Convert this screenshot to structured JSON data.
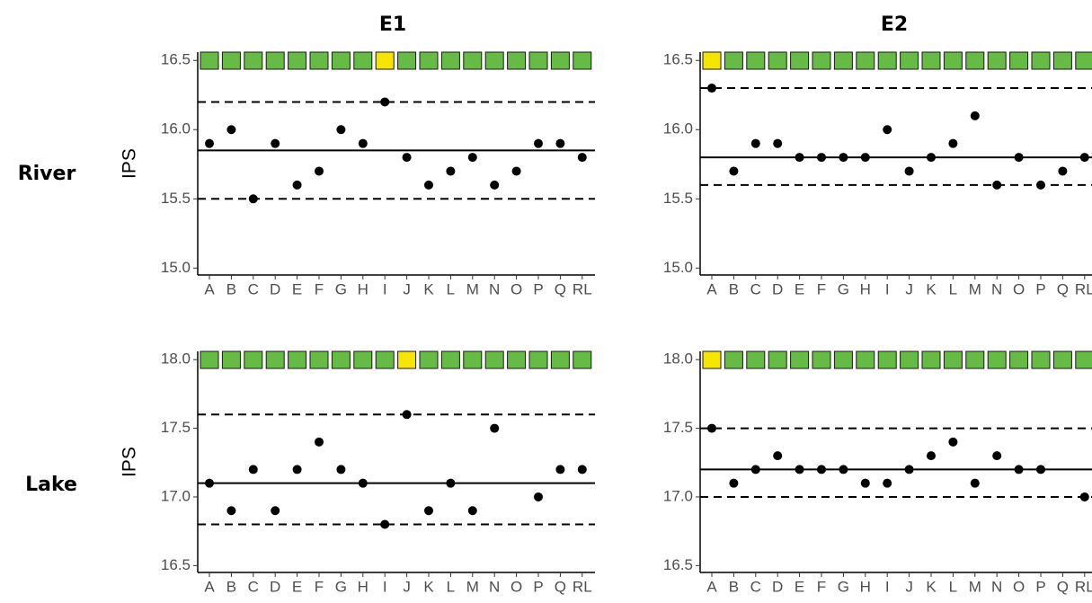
{
  "facets": {
    "columns": [
      "E1",
      "E2"
    ],
    "rows": [
      "River",
      "Lake"
    ]
  },
  "chart_data": [
    {
      "type": "scatter",
      "y_label": "IPS",
      "categories": [
        "A",
        "B",
        "C",
        "D",
        "E",
        "F",
        "G",
        "H",
        "I",
        "J",
        "K",
        "L",
        "M",
        "N",
        "O",
        "P",
        "Q",
        "RL"
      ],
      "values": [
        15.9,
        16.0,
        15.5,
        15.9,
        15.6,
        15.7,
        16.0,
        15.9,
        16.2,
        15.8,
        15.6,
        15.7,
        15.8,
        15.6,
        15.7,
        15.9,
        15.9,
        15.8
      ],
      "center": 15.85,
      "limits": [
        15.5,
        16.2
      ],
      "flags": [
        "#66bb44",
        "#66bb44",
        "#66bb44",
        "#66bb44",
        "#66bb44",
        "#66bb44",
        "#66bb44",
        "#66bb44",
        "#f6e500",
        "#66bb44",
        "#66bb44",
        "#66bb44",
        "#66bb44",
        "#66bb44",
        "#66bb44",
        "#66bb44",
        "#66bb44",
        "#66bb44"
      ],
      "color": "#000000",
      "ylim": [
        14.95,
        16.56
      ],
      "yticks": [
        {
          "value": 15,
          "label": "15.0"
        },
        {
          "value": 15.5,
          "label": "15.5"
        },
        {
          "value": 16,
          "label": "16.0"
        },
        {
          "value": 16.5,
          "label": "16.5"
        }
      ]
    },
    {
      "type": "scatter",
      "categories": [
        "A",
        "B",
        "C",
        "D",
        "E",
        "F",
        "G",
        "H",
        "I",
        "J",
        "K",
        "L",
        "M",
        "N",
        "O",
        "P",
        "Q",
        "RL"
      ],
      "values": [
        16.3,
        15.7,
        15.9,
        15.9,
        15.8,
        15.8,
        15.8,
        15.8,
        16.0,
        15.7,
        15.8,
        15.9,
        16.1,
        15.6,
        15.8,
        15.6,
        15.7,
        15.8
      ],
      "center": 15.8,
      "limits": [
        15.6,
        16.3
      ],
      "flags": [
        "#f6e500",
        "#66bb44",
        "#66bb44",
        "#66bb44",
        "#66bb44",
        "#66bb44",
        "#66bb44",
        "#66bb44",
        "#66bb44",
        "#66bb44",
        "#66bb44",
        "#66bb44",
        "#66bb44",
        "#66bb44",
        "#66bb44",
        "#66bb44",
        "#66bb44",
        "#66bb44"
      ],
      "color": "#000000",
      "ylim": [
        14.95,
        16.56
      ],
      "yticks": [
        {
          "value": 15,
          "label": "15.0"
        },
        {
          "value": 15.5,
          "label": "15.5"
        },
        {
          "value": 16,
          "label": "16.0"
        },
        {
          "value": 16.5,
          "label": "16.5"
        }
      ]
    },
    {
      "type": "scatter",
      "y_label": "IPS",
      "categories": [
        "A",
        "B",
        "C",
        "D",
        "E",
        "F",
        "G",
        "H",
        "I",
        "J",
        "K",
        "L",
        "M",
        "N",
        "O",
        "P",
        "Q",
        "RL"
      ],
      "values": [
        17.1,
        16.9,
        17.2,
        16.9,
        17.2,
        17.4,
        17.2,
        17.1,
        16.8,
        17.6,
        16.9,
        17.1,
        16.9,
        17.5,
        null,
        17.0,
        17.2,
        17.2
      ],
      "center": 17.1,
      "limits": [
        16.8,
        17.6
      ],
      "flags": [
        "#66bb44",
        "#66bb44",
        "#66bb44",
        "#66bb44",
        "#66bb44",
        "#66bb44",
        "#66bb44",
        "#66bb44",
        "#66bb44",
        "#f6e500",
        "#66bb44",
        "#66bb44",
        "#66bb44",
        "#66bb44",
        "#66bb44",
        "#66bb44",
        "#66bb44",
        "#66bb44"
      ],
      "color": "#000000",
      "ylim": [
        16.45,
        18.06
      ],
      "yticks": [
        {
          "value": 16.5,
          "label": "16.5"
        },
        {
          "value": 17,
          "label": "17.0"
        },
        {
          "value": 17.5,
          "label": "17.5"
        },
        {
          "value": 18,
          "label": "18.0"
        }
      ]
    },
    {
      "type": "scatter",
      "categories": [
        "A",
        "B",
        "C",
        "D",
        "E",
        "F",
        "G",
        "H",
        "I",
        "J",
        "K",
        "L",
        "M",
        "N",
        "O",
        "P",
        "Q",
        "RL"
      ],
      "values": [
        17.5,
        17.1,
        17.2,
        17.3,
        17.2,
        17.2,
        17.2,
        17.1,
        17.1,
        17.2,
        17.3,
        17.4,
        17.1,
        17.3,
        17.2,
        17.2,
        null,
        17.0
      ],
      "center": 17.2,
      "limits": [
        17.0,
        17.5
      ],
      "flags": [
        "#f6e500",
        "#66bb44",
        "#66bb44",
        "#66bb44",
        "#66bb44",
        "#66bb44",
        "#66bb44",
        "#66bb44",
        "#66bb44",
        "#66bb44",
        "#66bb44",
        "#66bb44",
        "#66bb44",
        "#66bb44",
        "#66bb44",
        "#66bb44",
        "#66bb44",
        "#66bb44"
      ],
      "color": "#000000",
      "ylim": [
        16.45,
        18.06
      ],
      "yticks": [
        {
          "value": 16.5,
          "label": "16.5"
        },
        {
          "value": 17,
          "label": "17.0"
        },
        {
          "value": 17.5,
          "label": "17.5"
        },
        {
          "value": 18,
          "label": "18.0"
        }
      ]
    }
  ]
}
